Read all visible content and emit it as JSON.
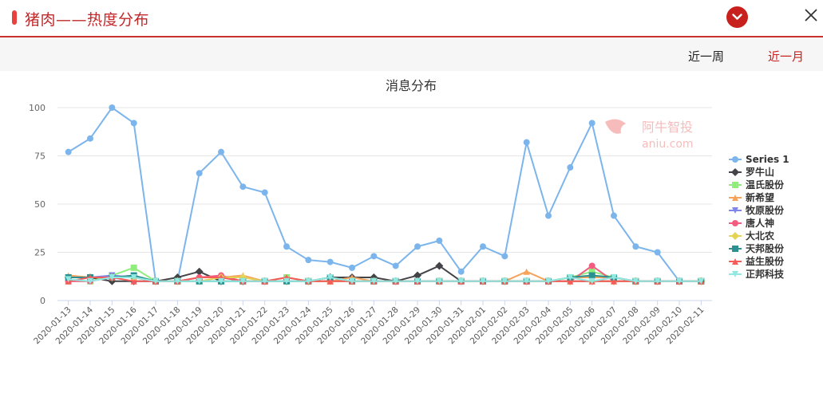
{
  "header": {
    "title": "猪肉——热度分布"
  },
  "tabs": {
    "week": "近一周",
    "month": "近一月"
  },
  "colors": {
    "accent": "#c9201e"
  },
  "icons": {
    "collapse": "chevron-down-icon",
    "close": "close-icon"
  },
  "watermark": {
    "brand": "阿牛智投",
    "site": "aniu.com"
  },
  "chart_data": {
    "type": "line",
    "title": "消息分布",
    "xlabel": "",
    "ylabel": "",
    "ylim": [
      0,
      100
    ],
    "yticks": [
      0,
      25,
      50,
      75,
      100
    ],
    "grid": true,
    "legend_position": "right",
    "categories": [
      "2020-01-13",
      "2020-01-14",
      "2020-01-15",
      "2020-01-16",
      "2020-01-17",
      "2020-01-18",
      "2020-01-19",
      "2020-01-20",
      "2020-01-21",
      "2020-01-22",
      "2020-01-23",
      "2020-01-24",
      "2020-01-25",
      "2020-01-26",
      "2020-01-27",
      "2020-01-28",
      "2020-01-29",
      "2020-01-30",
      "2020-01-31",
      "2020-02-01",
      "2020-02-02",
      "2020-02-03",
      "2020-02-04",
      "2020-02-05",
      "2020-02-06",
      "2020-02-07",
      "2020-02-08",
      "2020-02-09",
      "2020-02-10",
      "2020-02-11"
    ],
    "series": [
      {
        "name": "Series 1",
        "color": "#7cb5ec",
        "marker": "circle",
        "values": [
          77,
          84,
          100,
          92,
          10,
          10,
          66,
          77,
          59,
          56,
          28,
          21,
          20,
          17,
          23,
          18,
          28,
          31,
          15,
          28,
          23,
          82,
          44,
          69,
          92,
          44,
          28,
          25,
          10,
          10
        ]
      },
      {
        "name": "罗牛山",
        "color": "#434348",
        "marker": "diamond",
        "values": [
          12,
          12,
          10,
          10,
          10,
          12,
          15,
          10,
          10,
          10,
          10,
          10,
          12,
          12,
          12,
          10,
          13,
          18,
          10,
          10,
          10,
          10,
          10,
          10,
          10,
          10,
          10,
          10,
          10,
          10
        ]
      },
      {
        "name": "温氏股份",
        "color": "#90ed7d",
        "marker": "square",
        "values": [
          10,
          10,
          13,
          17,
          10,
          10,
          10,
          10,
          10,
          10,
          12,
          10,
          10,
          10,
          10,
          10,
          10,
          10,
          10,
          10,
          10,
          10,
          10,
          12,
          15,
          12,
          10,
          10,
          10,
          10
        ]
      },
      {
        "name": "新希望",
        "color": "#f7a35c",
        "marker": "triangle",
        "values": [
          13,
          12,
          12,
          12,
          10,
          10,
          12,
          12,
          13,
          10,
          12,
          10,
          10,
          12,
          10,
          10,
          10,
          10,
          10,
          10,
          10,
          15,
          10,
          12,
          12,
          12,
          10,
          10,
          10,
          10
        ]
      },
      {
        "name": "牧原股份",
        "color": "#8085e9",
        "marker": "triangle-down",
        "values": [
          12,
          12,
          13,
          12,
          10,
          10,
          10,
          10,
          10,
          10,
          10,
          10,
          10,
          10,
          10,
          10,
          10,
          10,
          10,
          10,
          10,
          10,
          10,
          10,
          10,
          12,
          10,
          10,
          10,
          10
        ]
      },
      {
        "name": "唐人神",
        "color": "#f15c80",
        "marker": "circle",
        "values": [
          10,
          10,
          12,
          12,
          10,
          10,
          12,
          13,
          10,
          10,
          10,
          10,
          10,
          10,
          10,
          10,
          10,
          10,
          10,
          10,
          10,
          10,
          10,
          10,
          18,
          10,
          10,
          10,
          10,
          10
        ]
      },
      {
        "name": "大北农",
        "color": "#e4d354",
        "marker": "diamond",
        "values": [
          12,
          12,
          12,
          12,
          10,
          10,
          10,
          12,
          12,
          10,
          10,
          10,
          10,
          10,
          10,
          10,
          10,
          10,
          10,
          10,
          10,
          10,
          10,
          10,
          10,
          10,
          10,
          10,
          10,
          10
        ]
      },
      {
        "name": "天邦股份",
        "color": "#2b908f",
        "marker": "square",
        "values": [
          12,
          12,
          12,
          13,
          10,
          10,
          10,
          10,
          10,
          10,
          10,
          10,
          12,
          10,
          10,
          10,
          10,
          10,
          10,
          10,
          10,
          10,
          10,
          12,
          13,
          12,
          10,
          10,
          10,
          10
        ]
      },
      {
        "name": "益生股份",
        "color": "#f45b5b",
        "marker": "triangle",
        "values": [
          10,
          12,
          12,
          10,
          10,
          10,
          12,
          12,
          10,
          10,
          12,
          10,
          10,
          10,
          10,
          10,
          10,
          10,
          10,
          10,
          10,
          10,
          10,
          10,
          10,
          10,
          10,
          10,
          10,
          10
        ]
      },
      {
        "name": "正邦科技",
        "color": "#91e8e1",
        "marker": "triangle-down",
        "values": [
          11,
          10,
          12,
          12,
          10,
          10,
          10,
          10,
          10,
          10,
          10,
          10,
          12,
          10,
          10,
          10,
          10,
          10,
          10,
          10,
          10,
          10,
          10,
          12,
          10,
          12,
          10,
          10,
          10,
          10
        ]
      }
    ]
  }
}
